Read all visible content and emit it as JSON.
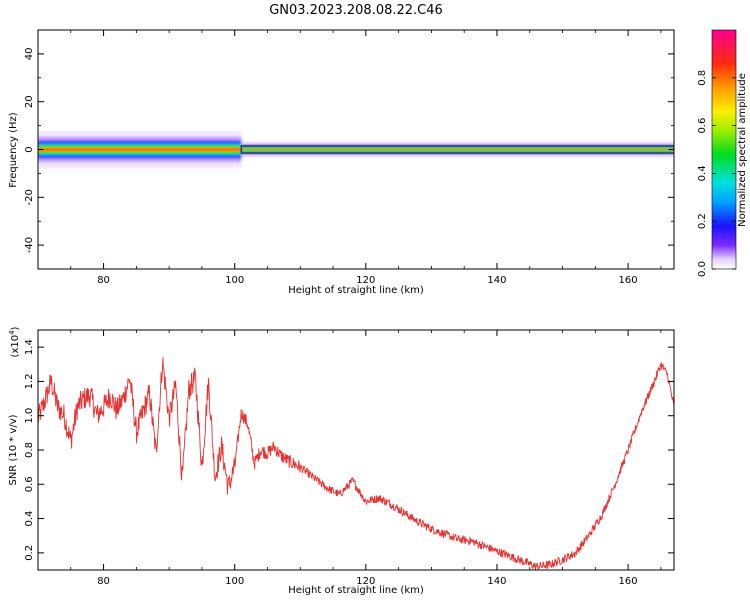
{
  "figure": {
    "title": "GN03.2023.208.08.22.C46"
  },
  "chart_data": [
    {
      "type": "heatmap",
      "xlabel": "Height of straight line (km)",
      "ylabel": "Frequency (Hz)",
      "xlim": [
        70,
        167
      ],
      "ylim": [
        -50,
        50
      ],
      "x_ticks": [
        80,
        100,
        120,
        140,
        160
      ],
      "y_ticks": [
        -40,
        -20,
        0,
        20,
        40
      ],
      "colorbar": {
        "label": "Normalized spectral amplitude",
        "range": [
          0,
          1
        ],
        "ticks": [
          0.0,
          0.2,
          0.4,
          0.6,
          0.8
        ]
      },
      "band": {
        "center_frequency": 0,
        "segments": [
          {
            "x_start": 70,
            "x_end": 101,
            "half_width_hz": 3.5,
            "peak_amplitude": 0.9
          },
          {
            "x_start": 101,
            "x_end": 167,
            "half_width_hz": 1.5,
            "peak_amplitude": 0.95
          }
        ]
      }
    },
    {
      "type": "line",
      "xlabel": "Height of straight line (km)",
      "ylabel": "SNR (10 * v/v)",
      "y_multiplier": "(x10",
      "y_multiplier_exp": "4",
      "y_multiplier_close": ")",
      "xlim": [
        70,
        167
      ],
      "ylim": [
        0.1,
        1.5
      ],
      "x_ticks": [
        80,
        100,
        120,
        140,
        160
      ],
      "y_ticks": [
        0.2,
        0.4,
        0.6,
        0.8,
        1.0,
        1.2,
        1.4
      ],
      "series": [
        {
          "color": "#e83030",
          "x": [
            70,
            71,
            72,
            73,
            74,
            75,
            76,
            77,
            78,
            79,
            80,
            81,
            82,
            83,
            84,
            85,
            86,
            87,
            88,
            89,
            90,
            91,
            92,
            93,
            94,
            95,
            96,
            97,
            98,
            99,
            100,
            101,
            102,
            103,
            104,
            105,
            106,
            107,
            108,
            110,
            112,
            114,
            116,
            118,
            120,
            122,
            124,
            126,
            128,
            130,
            132,
            134,
            136,
            138,
            140,
            142,
            144,
            146,
            148,
            150,
            152,
            154,
            156,
            158,
            160,
            162,
            164,
            165,
            166,
            167
          ],
          "y": [
            0.98,
            1.08,
            1.2,
            1.05,
            1.0,
            0.85,
            1.05,
            1.1,
            1.12,
            1.0,
            1.05,
            1.12,
            1.03,
            1.1,
            1.22,
            0.9,
            1.02,
            1.13,
            0.78,
            1.32,
            0.98,
            1.18,
            0.62,
            1.15,
            1.22,
            0.7,
            1.2,
            0.64,
            0.82,
            0.58,
            0.7,
            1.02,
            0.95,
            0.72,
            0.8,
            0.78,
            0.82,
            0.77,
            0.74,
            0.7,
            0.64,
            0.58,
            0.54,
            0.62,
            0.5,
            0.52,
            0.48,
            0.43,
            0.38,
            0.34,
            0.31,
            0.28,
            0.27,
            0.24,
            0.21,
            0.18,
            0.15,
            0.12,
            0.13,
            0.16,
            0.2,
            0.3,
            0.42,
            0.6,
            0.8,
            1.02,
            1.2,
            1.3,
            1.24,
            1.05
          ]
        }
      ]
    }
  ]
}
